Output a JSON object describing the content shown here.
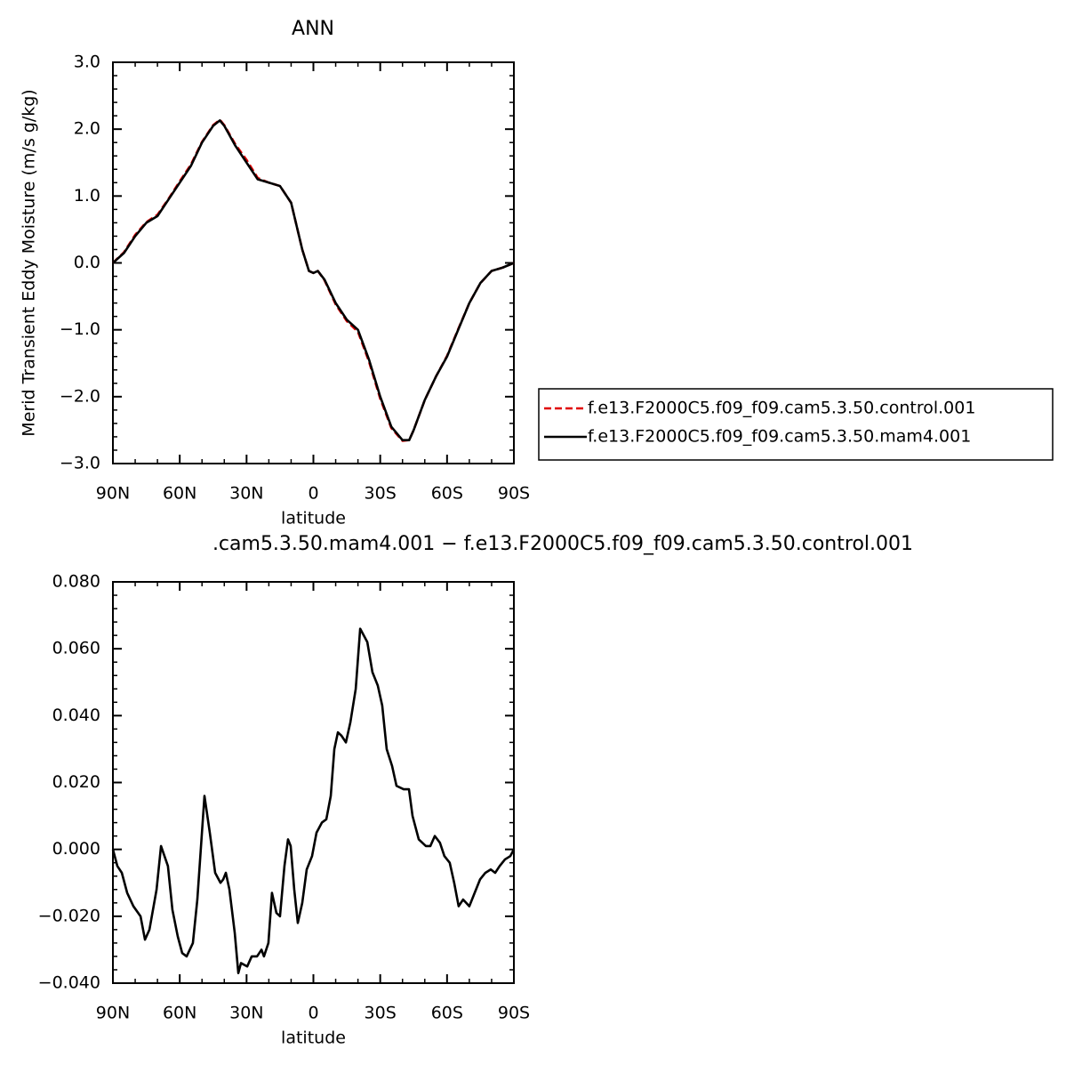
{
  "chart_data": [
    {
      "type": "line",
      "title": "ANN",
      "ylabel": "Merid Transient Eddy Moisture (m/s g/kg)",
      "xlabel": "latitude",
      "xlim": [
        90,
        -90
      ],
      "xticks": [
        {
          "value": 90,
          "label": "90N"
        },
        {
          "value": 60,
          "label": "60N"
        },
        {
          "value": 30,
          "label": "30N"
        },
        0,
        {
          "value": -30,
          "label": "30S"
        },
        {
          "value": -60,
          "label": "60S"
        },
        {
          "value": -90,
          "label": "90S"
        }
      ],
      "ylim": [
        -3,
        3
      ],
      "yticks": [
        {
          "value": 3,
          "label": "3.0"
        },
        {
          "value": 2,
          "label": "2.0"
        },
        {
          "value": 1,
          "label": "1.0"
        },
        {
          "value": 0,
          "label": "0.0"
        },
        {
          "value": -1,
          "label": "−1.0"
        },
        {
          "value": -2,
          "label": "−2.0"
        },
        {
          "value": -3,
          "label": "−3.0"
        }
      ],
      "legend": "right",
      "x": [
        90,
        85,
        80,
        75,
        70,
        65,
        60,
        55,
        50,
        45,
        42,
        40,
        35,
        30,
        25,
        20,
        15,
        10,
        5,
        2,
        0,
        -2,
        -5,
        -10,
        -15,
        -20,
        -25,
        -30,
        -35,
        -40,
        -43,
        -45,
        -50,
        -55,
        -60,
        -65,
        -70,
        -75,
        -80,
        -85,
        -90
      ],
      "series": [
        {
          "name": "f.e13.F2000C5.f09_f09.cam5.3.50.control.001",
          "color": "#e00000",
          "line_style": "dashed",
          "values": [
            0.0,
            0.16,
            0.42,
            0.61,
            0.72,
            0.96,
            1.22,
            1.47,
            1.81,
            2.06,
            2.14,
            2.06,
            1.77,
            1.54,
            1.27,
            1.2,
            1.15,
            0.9,
            0.2,
            -0.12,
            -0.15,
            -0.12,
            -0.26,
            -0.62,
            -0.87,
            -1.03,
            -1.48,
            -2.03,
            -2.47,
            -2.66,
            -2.65,
            -2.5,
            -2.05,
            -1.7,
            -1.39,
            -0.99,
            -0.6,
            -0.3,
            -0.12,
            -0.07,
            0.0
          ]
        },
        {
          "name": "f.e13.F2000C5.f09_f09.cam5.3.50.mam4.001",
          "color": "#000000",
          "line_style": "solid",
          "values": [
            0.0,
            0.15,
            0.4,
            0.6,
            0.7,
            0.95,
            1.2,
            1.45,
            1.8,
            2.05,
            2.13,
            2.05,
            1.75,
            1.5,
            1.25,
            1.2,
            1.15,
            0.9,
            0.2,
            -0.12,
            -0.15,
            -0.12,
            -0.25,
            -0.6,
            -0.85,
            -1.0,
            -1.45,
            -2.0,
            -2.45,
            -2.65,
            -2.65,
            -2.5,
            -2.05,
            -1.7,
            -1.4,
            -1.0,
            -0.6,
            -0.3,
            -0.12,
            -0.07,
            0.0
          ]
        }
      ]
    },
    {
      "type": "line",
      "title": ".cam5.3.50.mam4.001 − f.e13.F2000C5.f09_f09.cam5.3.50.control.001",
      "xlabel": "latitude",
      "xlim": [
        90,
        -90
      ],
      "xticks": [
        {
          "value": 90,
          "label": "90N"
        },
        {
          "value": 60,
          "label": "60N"
        },
        {
          "value": 30,
          "label": "30N"
        },
        0,
        {
          "value": -30,
          "label": "30S"
        },
        {
          "value": -60,
          "label": "60S"
        },
        {
          "value": -90,
          "label": "90S"
        }
      ],
      "ylim": [
        -0.04,
        0.08
      ],
      "yticks": [
        {
          "value": 0.08,
          "label": "0.080"
        },
        {
          "value": 0.06,
          "label": "0.060"
        },
        {
          "value": 0.04,
          "label": "0.040"
        },
        {
          "value": 0.02,
          "label": "0.020"
        },
        {
          "value": 0,
          "label": "0.000"
        },
        {
          "value": -0.02,
          "label": "−0.020"
        },
        {
          "value": -0.04,
          "label": "−0.040"
        }
      ],
      "x": [
        90,
        88,
        86,
        83.6,
        80.8,
        77.6,
        75.6,
        73.6,
        70.4,
        68.4,
        65.3,
        63.3,
        60.9,
        58.9,
        56.9,
        54.1,
        52.1,
        48.9,
        46.5,
        44.1,
        41.7,
        40.5,
        39.3,
        37.7,
        35.3,
        33.7,
        32.5,
        29.7,
        27.7,
        25.3,
        23.3,
        22.2,
        20.2,
        18.6,
        16.6,
        15,
        13,
        11.4,
        10.2,
        8.6,
        7,
        5,
        3,
        0.6,
        -1.4,
        -3.8,
        -5.8,
        -7.8,
        -9.4,
        -11,
        -12.6,
        -14.6,
        -16.6,
        -19,
        -21,
        -24.2,
        -26.5,
        -28.9,
        -30.9,
        -32.9,
        -35.3,
        -37.3,
        -40.5,
        -42.9,
        -44.5,
        -47.3,
        -50.5,
        -52.5,
        -54.5,
        -56.8,
        -58.8,
        -61.2,
        -63.2,
        -65.2,
        -67.2,
        -70,
        -72.4,
        -74.8,
        -77.2,
        -79.6,
        -81.6,
        -83.6,
        -86,
        -88.4,
        -90
      ],
      "series": [
        {
          "color": "#000000",
          "line_style": "solid",
          "values": [
            0.0,
            -0.005,
            -0.007,
            -0.013,
            -0.017,
            -0.02,
            -0.027,
            -0.024,
            -0.012,
            0.001,
            -0.005,
            -0.018,
            -0.026,
            -0.031,
            -0.032,
            -0.028,
            -0.015,
            0.016,
            0.005,
            -0.007,
            -0.01,
            -0.009,
            -0.007,
            -0.012,
            -0.025,
            -0.037,
            -0.034,
            -0.035,
            -0.032,
            -0.032,
            -0.03,
            -0.032,
            -0.028,
            -0.013,
            -0.019,
            -0.02,
            -0.005,
            0.003,
            0.001,
            -0.012,
            -0.022,
            -0.016,
            -0.006,
            -0.002,
            0.005,
            0.008,
            0.009,
            0.016,
            0.03,
            0.035,
            0.034,
            0.032,
            0.038,
            0.048,
            0.066,
            0.062,
            0.053,
            0.049,
            0.043,
            0.03,
            0.025,
            0.019,
            0.018,
            0.018,
            0.01,
            0.003,
            0.001,
            0.001,
            0.004,
            0.002,
            -0.002,
            -0.004,
            -0.01,
            -0.017,
            -0.015,
            -0.017,
            -0.013,
            -0.009,
            -0.007,
            -0.006,
            -0.007,
            -0.005,
            -0.003,
            -0.002,
            0.0
          ]
        }
      ]
    }
  ]
}
